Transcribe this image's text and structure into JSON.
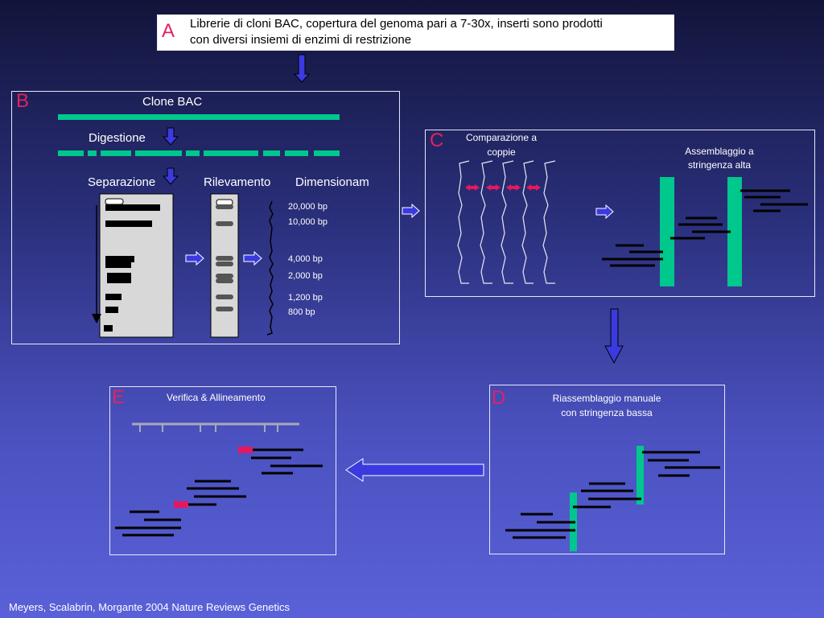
{
  "panel_a": {
    "letter": "A",
    "text_line1": "Librerie di cloni BAC, copertura del genoma pari a 7-30x, inserti sono prodotti",
    "text_line2": "con diversi insiemi di enzimi di restrizione"
  },
  "panel_b": {
    "letter": "B",
    "clone_label": "Clone BAC",
    "digestion_label": "Digestione",
    "separation_label": "Separazione",
    "detection_label": "Rilevamento",
    "sizing_label": "Dimensionam",
    "sizes": [
      "20,000 bp",
      "10,000 bp",
      "4,000 bp",
      "2,000 bp",
      "1,200 bp",
      "800 bp"
    ]
  },
  "panel_c": {
    "letter": "C",
    "pairwise_line1": "Comparazione a",
    "pairwise_line2": "coppie",
    "assembly_line1": "Assemblaggio a",
    "assembly_line2": "stringenza alta"
  },
  "panel_d": {
    "letter": "D",
    "title_line1": "Riassemblaggio manuale",
    "title_line2": "con stringenza bassa"
  },
  "panel_e": {
    "letter": "E",
    "title": "Verifica & Allineamento"
  },
  "citation": "Meyers, Scalabrin, Morgante 2004 Nature Reviews Genetics",
  "colors": {
    "accent_green": "#00c78c",
    "letter_red": "#e0245e",
    "arrow_blue": "#3a3ae0",
    "highlight_pink": "#e8175d"
  }
}
